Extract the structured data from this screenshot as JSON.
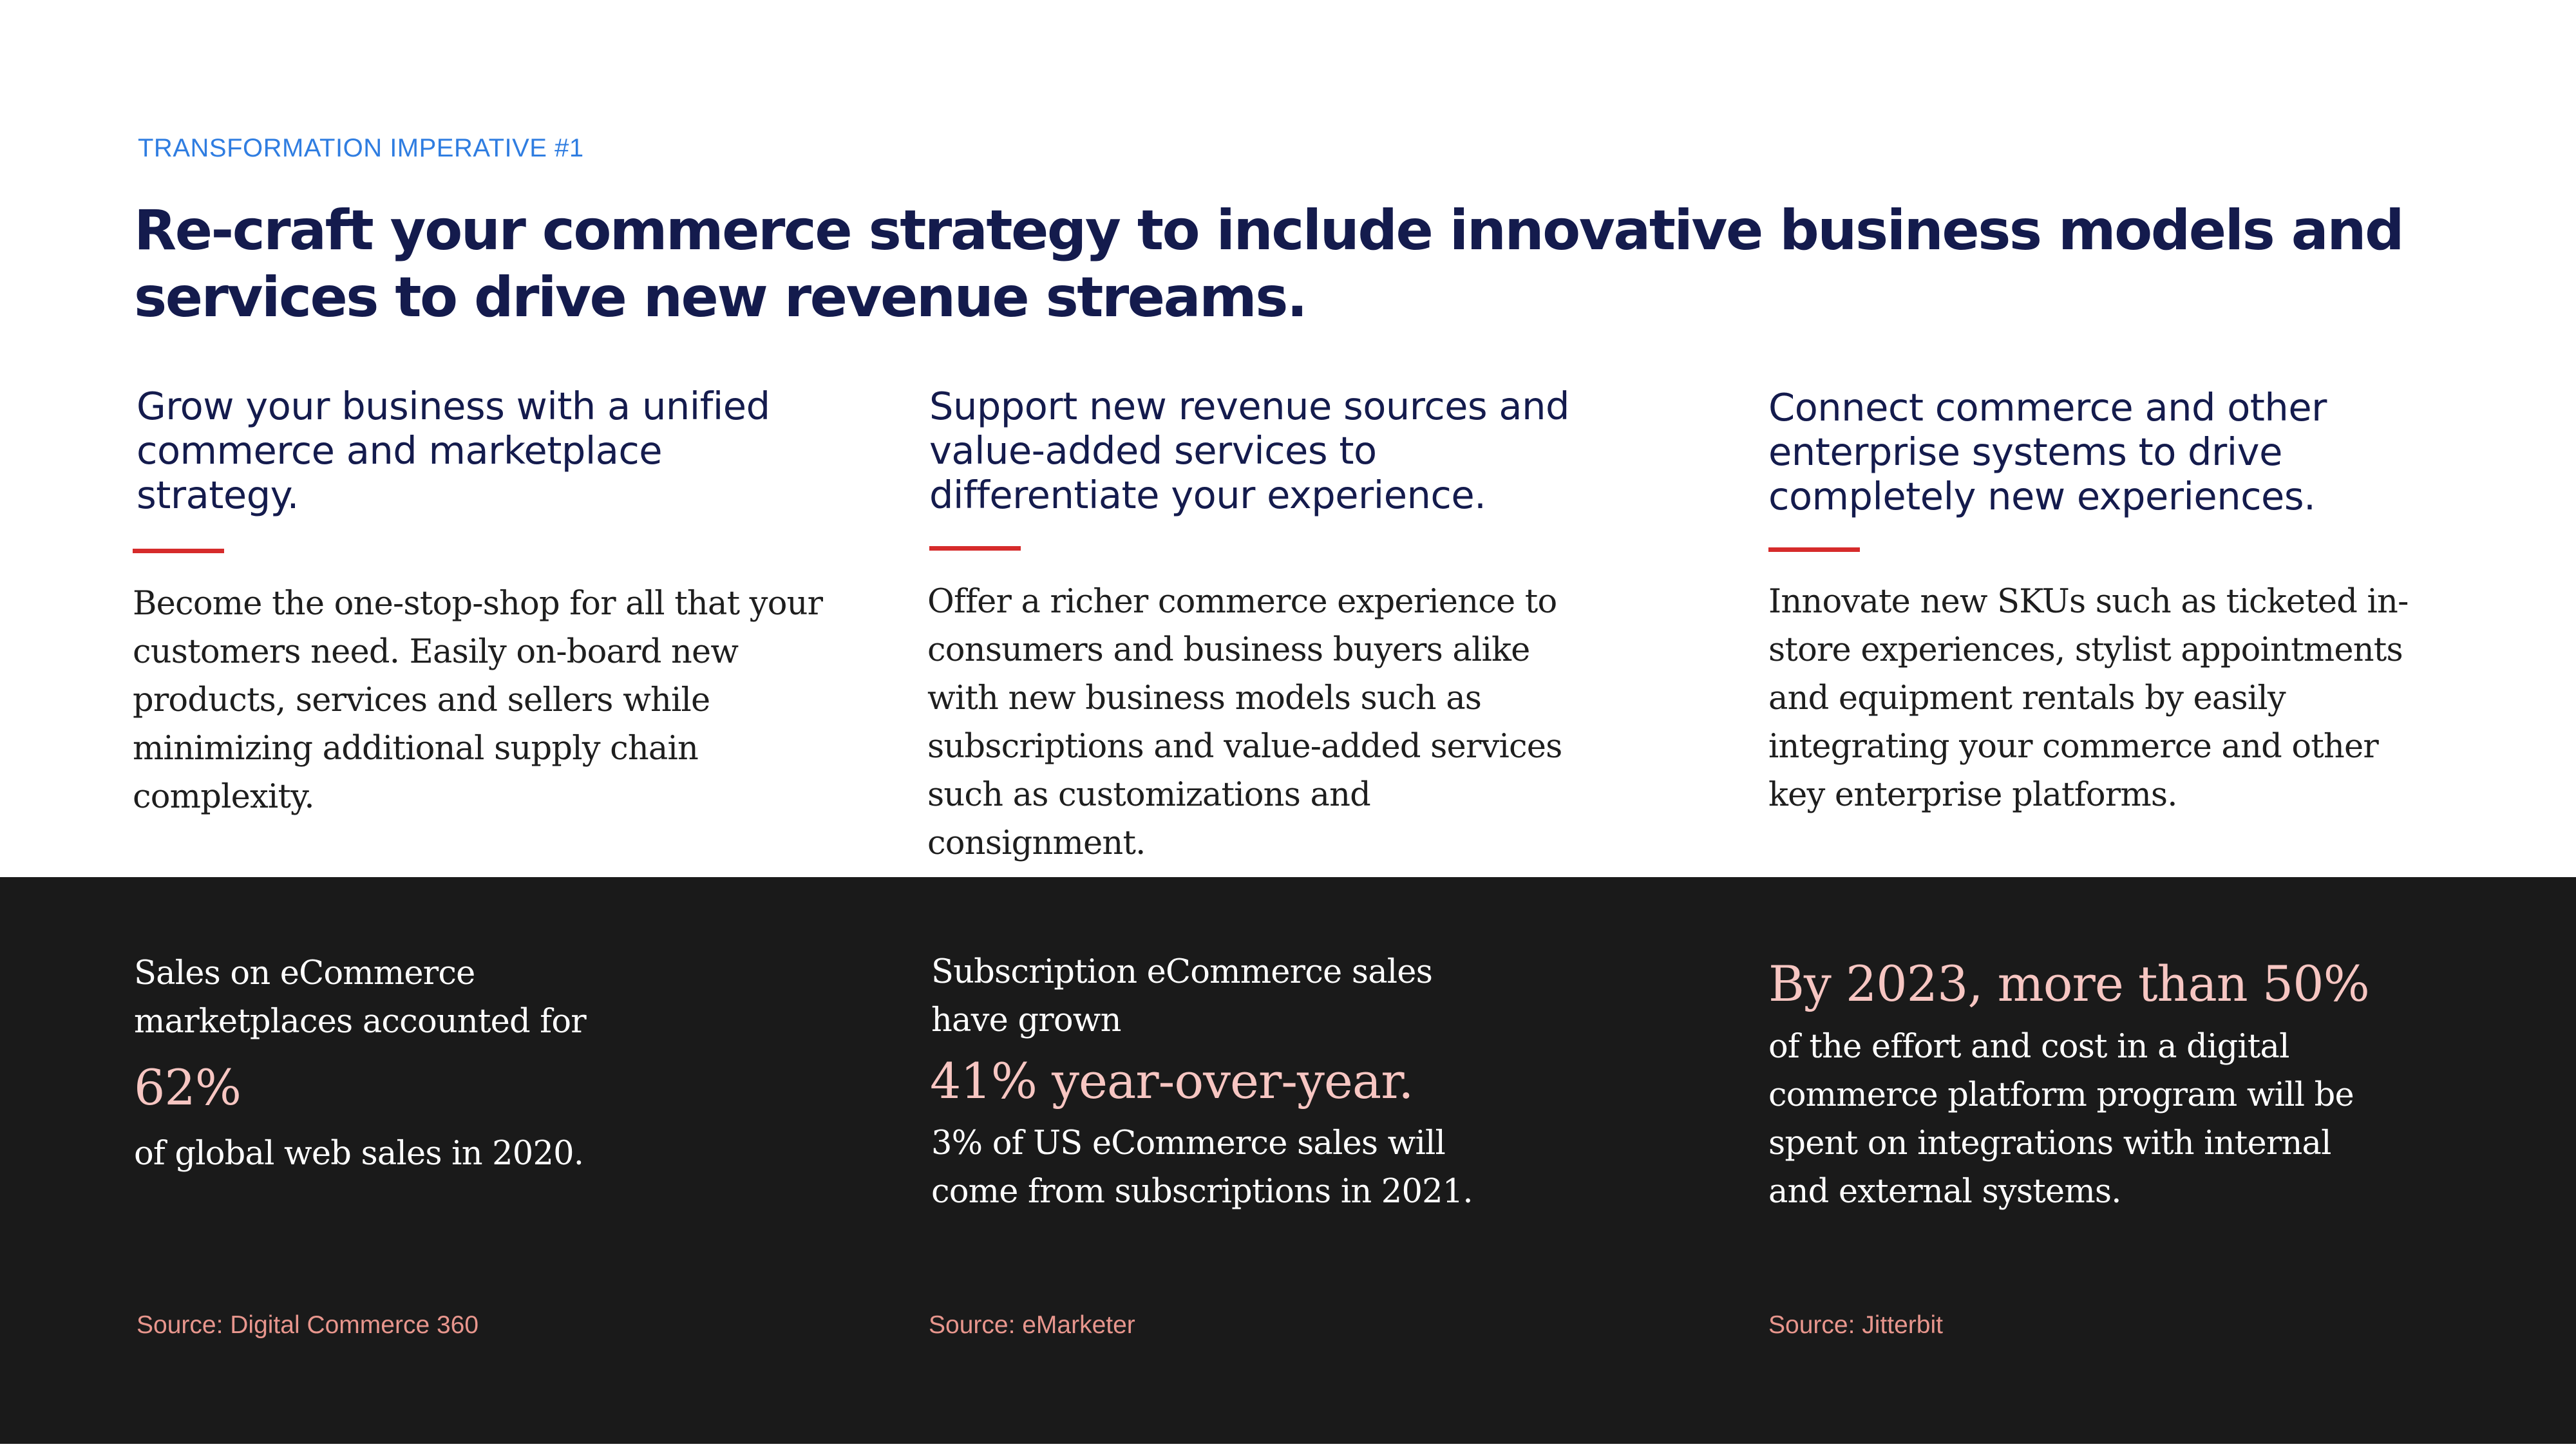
{
  "eyebrow": "TRANSFORMATION IMPERATIVE #1",
  "headline": "Re-craft your commerce strategy to include innovative business models and services to drive new revenue streams.",
  "columns": [
    {
      "heading": "Grow your business with a unified commerce and marketplace strategy.",
      "body": "Become the one-stop-shop for all that your customers need. Easily on-board new products, services and sellers while minimizing additional supply chain complexity."
    },
    {
      "heading": "Support new revenue sources and value-added services to differentiate your experience.",
      "body": "Offer a richer commerce experience to consumers and business buyers alike with new business models such as subscriptions and value-added services such as customizations and consignment."
    },
    {
      "heading": "Connect commerce and other enterprise systems to drive completely new experiences.",
      "body": "Innovate new SKUs such as ticketed in-store experiences, stylist appointments and equipment rentals by easily integrating your commerce and other key enterprise platforms."
    }
  ],
  "stats": [
    {
      "intro": "Sales on eCommerce marketplaces accounted for",
      "highlight": "62%",
      "outro": "of global web sales in 2020.",
      "source": "Source: Digital Commerce 360"
    },
    {
      "intro": "Subscription eCommerce sales have grown",
      "highlight": "41% year-over-year.",
      "outro": "3% of US eCommerce sales will come from subscriptions in 2021.",
      "source": "Source: eMarketer"
    },
    {
      "intro": "",
      "highlight": "By 2023, more than 50%",
      "outro": "of the effort and cost in a digital commerce platform program will be spent on integrations with internal and external systems.",
      "source": "Source: Jitterbit"
    }
  ],
  "colors": {
    "eyebrow": "#2f7de1",
    "headline": "#141b4d",
    "accent_rule": "#d62b2b",
    "dark_band": "#1a1a1a",
    "highlight": "#f7c6c2",
    "source": "#e8968d"
  }
}
